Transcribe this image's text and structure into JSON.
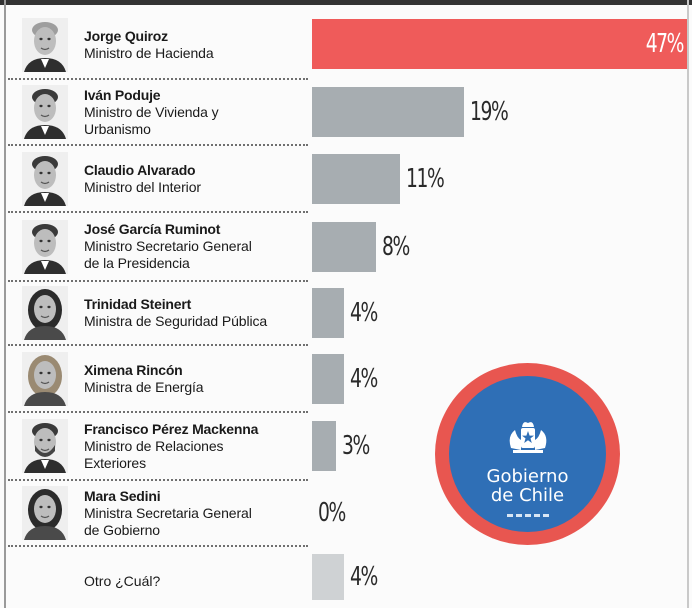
{
  "chart_data": {
    "type": "bar",
    "orientation": "horizontal",
    "categories": [
      "Jorge Quiroz",
      "Iván Poduje",
      "Claudio Alvarado",
      "José García Ruminot",
      "Trinidad Steinert",
      "Ximena Rincón",
      "Francisco Pérez Mackenna",
      "Mara Sedini",
      "Otro ¿Cuál?"
    ],
    "values": [
      47,
      19,
      11,
      8,
      4,
      4,
      3,
      0,
      4
    ],
    "value_labels": [
      "47%",
      "19%",
      "11%",
      "8%",
      "4%",
      "4%",
      "3%",
      "0%",
      "4%"
    ],
    "unit": "%",
    "xlim": [
      0,
      47
    ],
    "highlight_color": "#ef5b5a",
    "bar_color": "#a7adb1",
    "other_bar_color": "#cfd2d4",
    "label_color": "#2a2a2a",
    "highlight_label_color": "#ffffff",
    "grid": false,
    "legend": "none"
  },
  "people": [
    {
      "name": "Jorge Quiroz",
      "role": [
        "Ministro de Hacienda"
      ],
      "avatar_icon": "portrait-jorge-quiroz-icon"
    },
    {
      "name": "Iván Poduje",
      "role": [
        "Ministro de Vivienda y",
        "Urbanismo"
      ],
      "avatar_icon": "portrait-ivan-poduje-icon"
    },
    {
      "name": "Claudio Alvarado",
      "role": [
        "Ministro del Interior"
      ],
      "avatar_icon": "portrait-claudio-alvarado-icon"
    },
    {
      "name": "José García Ruminot",
      "role": [
        "Ministro Secretario General",
        "de la Presidencia"
      ],
      "avatar_icon": "portrait-jose-garcia-ruminot-icon"
    },
    {
      "name": "Trinidad Steinert",
      "role": [
        "Ministra de Seguridad Pública"
      ],
      "avatar_icon": "portrait-trinidad-steinert-icon"
    },
    {
      "name": "Ximena Rincón",
      "role": [
        "Ministra de Energía"
      ],
      "avatar_icon": "portrait-ximena-rincon-icon"
    },
    {
      "name": "Francisco Pérez Mackenna",
      "role": [
        "Ministro de Relaciones",
        "Exteriores"
      ],
      "avatar_icon": "portrait-francisco-perez-mackenna-icon"
    },
    {
      "name": "Mara Sedini",
      "role": [
        "Ministra Secretaria General",
        "de Gobierno"
      ],
      "avatar_icon": "portrait-mara-sedini-icon"
    }
  ],
  "other_option": "Otro ¿Cuál?",
  "logo": {
    "line1": "Gobierno",
    "line2": "de Chile",
    "ring_color": "#e85650",
    "core_color": "#2f6fb6",
    "icon": "gobierno-de-chile-emblem-icon"
  }
}
